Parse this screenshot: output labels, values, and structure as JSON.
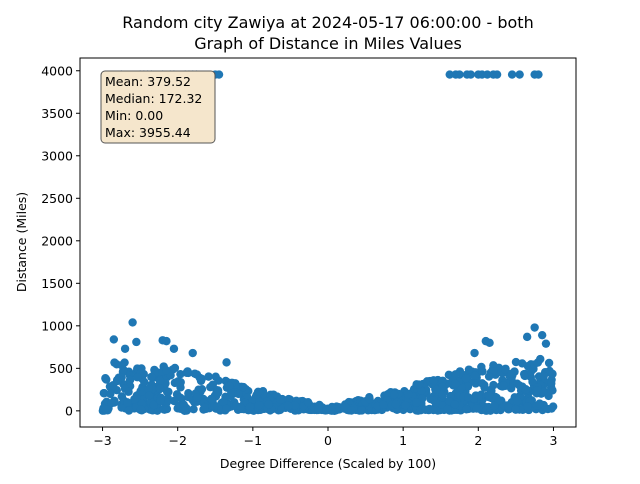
{
  "chart_data": {
    "type": "scatter",
    "title_line1": "Random city Zawiya at 2024-05-17 06:00:00  - both",
    "title_line2": "Graph of Distance in Miles Values",
    "xlabel": "Degree Difference (Scaled by 100)",
    "ylabel": "Distance (Miles)",
    "xlim": [
      -3.3,
      3.3
    ],
    "ylim": [
      -190,
      4150
    ],
    "xticks": [
      -3,
      -2,
      -1,
      0,
      1,
      2,
      3
    ],
    "yticks": [
      0,
      500,
      1000,
      1500,
      2000,
      2500,
      3000,
      3500,
      4000
    ],
    "marker_color": "#1f77b4",
    "stats_box": {
      "lines": [
        "Mean: 379.52",
        "Median: 172.32",
        "Min: 0.00",
        "Max: 3955.44"
      ],
      "placement": "top-left",
      "background": "#f5e6cc"
    },
    "series": [
      {
        "values_outliers_top": {
          "x": [
            -2.75,
            -2.5,
            -2.45,
            -2.4,
            -2.35,
            -2.2,
            -2.1,
            -2.05,
            -1.9,
            -1.85,
            -1.8,
            -1.75,
            -1.5,
            -1.45,
            1.62,
            1.7,
            1.75,
            1.85,
            1.9,
            2.0,
            2.05,
            2.12,
            2.2,
            2.25,
            2.45,
            2.55,
            2.75,
            2.8
          ],
          "y": [
            3955,
            3955,
            3955,
            3955,
            3955,
            3955,
            3955,
            3955,
            3955,
            3955,
            3955,
            3955,
            3955,
            3955,
            3955,
            3955,
            3955,
            3955,
            3955,
            3955,
            3955,
            3955,
            3955,
            3955,
            3955,
            3955,
            3955,
            3955
          ]
        },
        "values_highlights": {
          "x": [
            -2.6,
            -2.2,
            -2.15,
            -2.05,
            -1.8,
            -1.35,
            -2.85,
            -2.7,
            -2.55,
            2.1,
            2.15,
            2.75,
            2.85,
            2.9,
            1.95,
            2.65
          ],
          "y": [
            1040,
            830,
            820,
            730,
            680,
            570,
            840,
            730,
            810,
            820,
            800,
            980,
            890,
            790,
            680,
            870
          ]
        },
        "bulk_shape": {
          "description_envelope_x": [
            -3,
            -2,
            -1,
            0,
            1,
            2,
            3
          ],
          "envelope_upper": [
            620,
            550,
            280,
            30,
            280,
            550,
            700
          ],
          "count": 900
        }
      }
    ]
  }
}
